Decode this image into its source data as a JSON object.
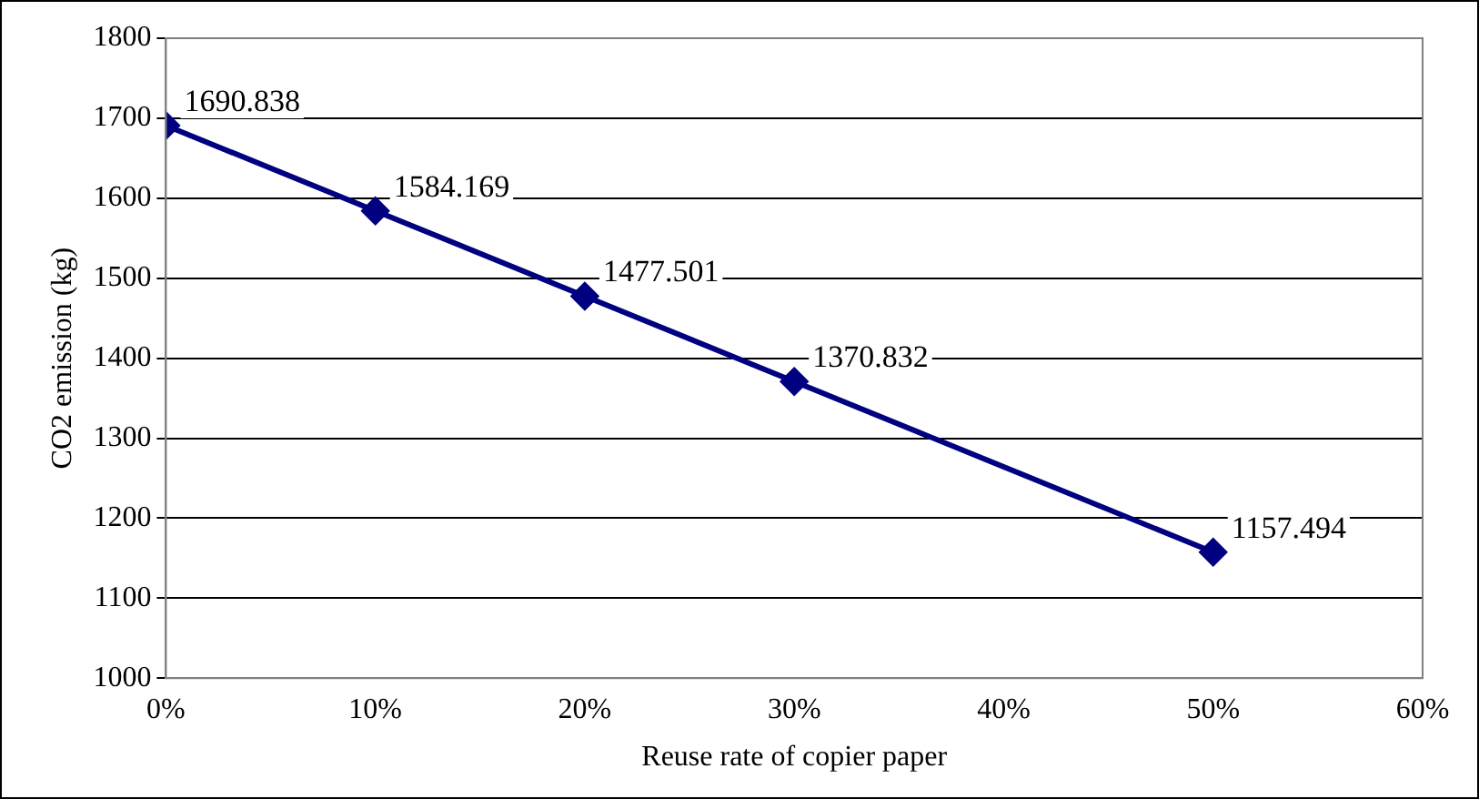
{
  "chart_data": {
    "type": "line",
    "xlabel": "Reuse rate of copier paper",
    "ylabel": "CO2 emission (kg)",
    "x": [
      0,
      10,
      20,
      30,
      50
    ],
    "series": [
      {
        "color": "#000080",
        "values": [
          1690.838,
          1584.169,
          1477.501,
          1370.832,
          1157.494
        ]
      }
    ],
    "xlim": [
      0,
      60
    ],
    "xticks": [
      {
        "value": 0,
        "label": "0%"
      },
      {
        "value": 10,
        "label": "10%"
      },
      {
        "value": 20,
        "label": "20%"
      },
      {
        "value": 30,
        "label": "30%"
      },
      {
        "value": 40,
        "label": "40%"
      },
      {
        "value": 50,
        "label": "50%"
      },
      {
        "value": 60,
        "label": "60%"
      }
    ],
    "ylim": [
      1000,
      1800
    ],
    "yticks": [
      1000,
      1100,
      1200,
      1300,
      1400,
      1500,
      1600,
      1700,
      1800
    ],
    "grid": "y",
    "legend": false,
    "marker": "diamond",
    "line_style": "solid",
    "data_labels": true
  }
}
